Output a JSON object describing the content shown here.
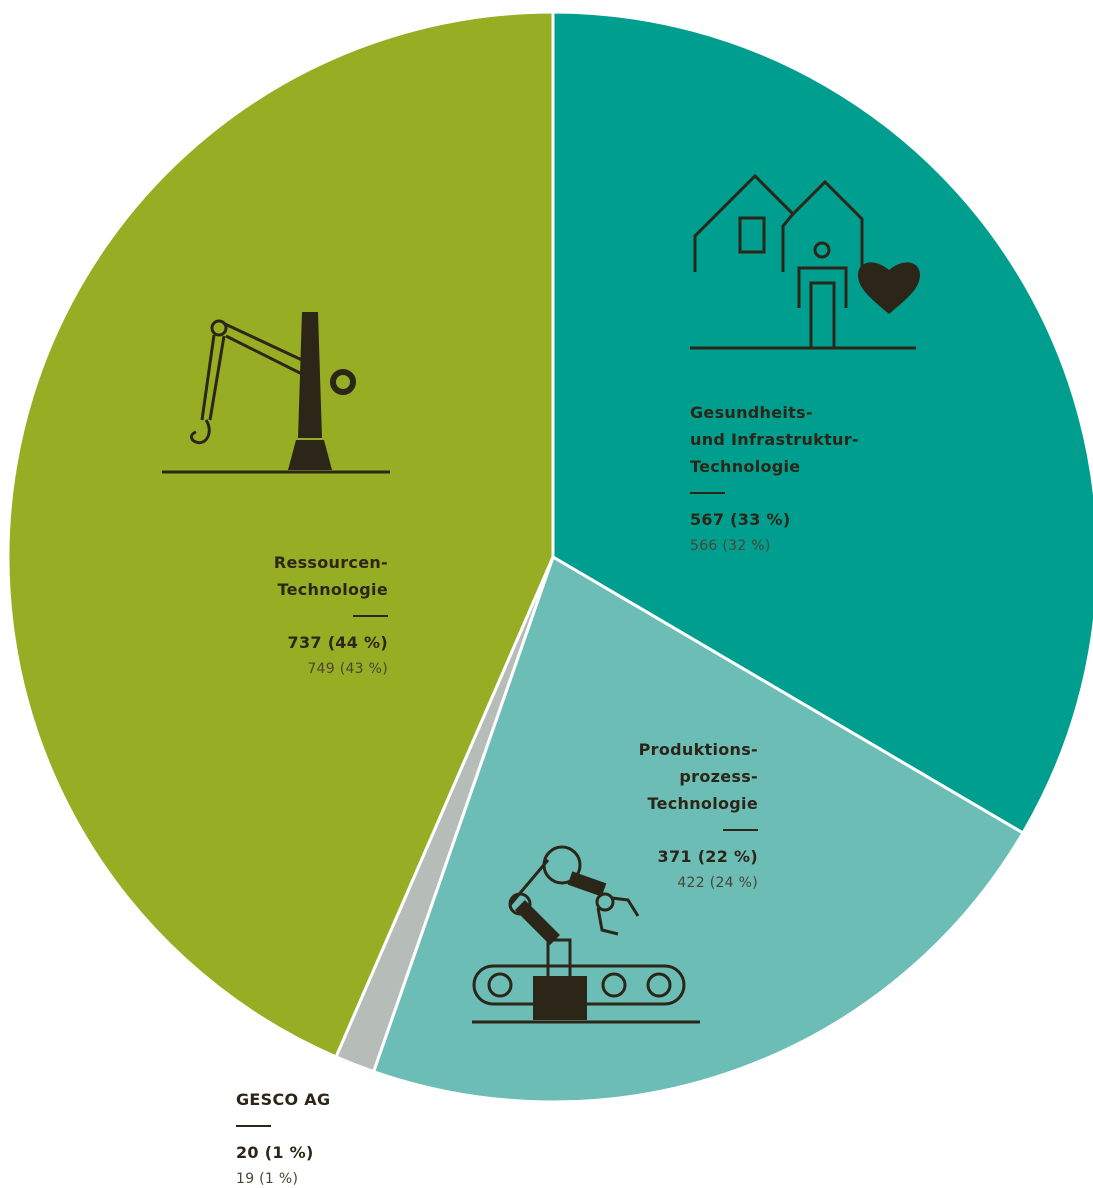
{
  "chart_data": {
    "type": "pie",
    "categories": [
      "Gesundheits-\nund Infrastruktur-\nTechnologie",
      "Produktions-\nprozess-\nTechnologie",
      "GESCO AG",
      "Ressourcen-\nTechnologie"
    ],
    "values": [
      567,
      371,
      20,
      737
    ],
    "value_labels": [
      "567 (33 %)",
      "371 (22 %)",
      "20 (1 %)",
      "737 (44 %)"
    ],
    "prior_value_labels": [
      "566 (32 %)",
      "422 (24 %)",
      "19 (1 %)",
      "749 (43 %)"
    ],
    "colors": [
      "#009e8f",
      "#6cbdb5",
      "#b6bdb9",
      "#97ae24"
    ]
  }
}
